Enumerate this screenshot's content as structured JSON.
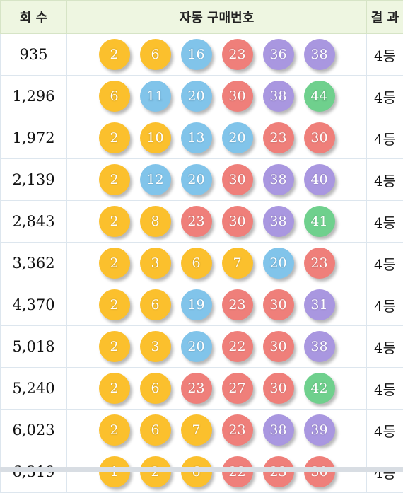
{
  "header": {
    "round": "회 수",
    "numbers": "자동 구매번호",
    "result": "결 과"
  },
  "colors": {
    "yellow": "#fbc02d",
    "blue": "#81c4ea",
    "red": "#ef7f7a",
    "purple": "#a997e0",
    "green": "#6fd08d"
  },
  "rows": [
    {
      "round": "935",
      "nums": [
        "2",
        "6",
        "16",
        "23",
        "36",
        "38"
      ],
      "result": "4등"
    },
    {
      "round": "1,296",
      "nums": [
        "6",
        "11",
        "20",
        "30",
        "38",
        "44"
      ],
      "result": "4등"
    },
    {
      "round": "1,972",
      "nums": [
        "2",
        "10",
        "13",
        "20",
        "23",
        "30"
      ],
      "result": "4등"
    },
    {
      "round": "2,139",
      "nums": [
        "2",
        "12",
        "20",
        "30",
        "38",
        "40"
      ],
      "result": "4등"
    },
    {
      "round": "2,843",
      "nums": [
        "2",
        "8",
        "23",
        "30",
        "38",
        "41"
      ],
      "result": "4등"
    },
    {
      "round": "3,362",
      "nums": [
        "2",
        "3",
        "6",
        "7",
        "20",
        "23"
      ],
      "result": "4등"
    },
    {
      "round": "4,370",
      "nums": [
        "2",
        "6",
        "19",
        "23",
        "30",
        "31"
      ],
      "result": "4등"
    },
    {
      "round": "5,018",
      "nums": [
        "2",
        "3",
        "20",
        "22",
        "30",
        "38"
      ],
      "result": "4등"
    },
    {
      "round": "5,240",
      "nums": [
        "2",
        "6",
        "23",
        "27",
        "30",
        "42"
      ],
      "result": "4등"
    },
    {
      "round": "6,023",
      "nums": [
        "2",
        "6",
        "7",
        "23",
        "38",
        "39"
      ],
      "result": "4등"
    },
    {
      "round": "6,319",
      "nums": [
        "1",
        "2",
        "6",
        "22",
        "23",
        "30"
      ],
      "result": "4등"
    }
  ]
}
